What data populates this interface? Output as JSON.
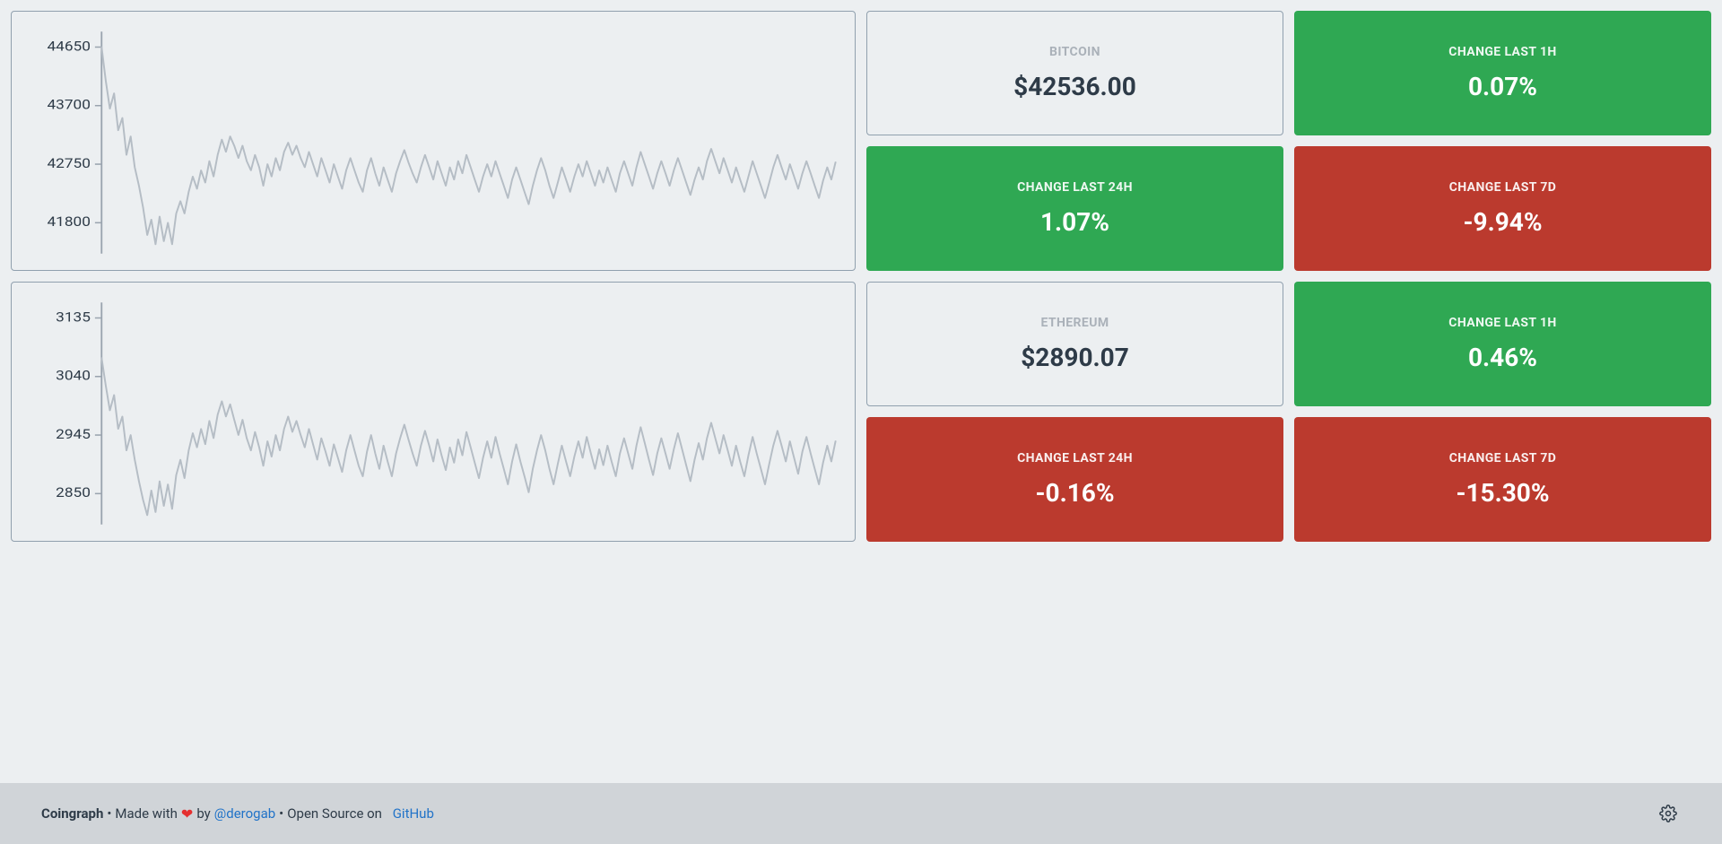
{
  "colors": {
    "page_bg": "#eceff1",
    "card_border": "#90a0ae",
    "positive_bg": "#2fa853",
    "negative_bg": "#bb3a2e",
    "chart_line": "#b5bdc5",
    "chart_axis": "#9aa4af",
    "text_primary": "#2e3b48",
    "text_muted": "#aab1b9",
    "footer_bg": "#d0d4d8",
    "link": "#2173c8",
    "heart": "#e53030"
  },
  "coins": [
    {
      "id": "bitcoin",
      "name_label": "BITCOIN",
      "price_display": "$42536.00",
      "change_1h": {
        "label": "CHANGE LAST 1H",
        "value": "0.07%",
        "positive": true
      },
      "change_24h": {
        "label": "CHANGE LAST 24H",
        "value": "1.07%",
        "positive": true
      },
      "change_7d": {
        "label": "CHANGE LAST 7D",
        "value": "-9.94%",
        "positive": false
      },
      "chart": {
        "type": "line",
        "y_ticks": [
          41800,
          42750,
          43700,
          44650
        ],
        "ylim": [
          41300,
          44900
        ],
        "line_color": "#b5bdc5",
        "line_width": 1.6,
        "axis_color": "#9aa4af",
        "background_color": "#eceff1",
        "label_fontsize": 14,
        "series": [
          44650,
          44100,
          43650,
          43900,
          43300,
          43500,
          42900,
          43200,
          42700,
          42400,
          42050,
          41600,
          41850,
          41450,
          41900,
          41500,
          41800,
          41450,
          41950,
          42150,
          41950,
          42300,
          42550,
          42350,
          42650,
          42450,
          42800,
          42550,
          42900,
          43150,
          42950,
          43200,
          43050,
          42850,
          43050,
          42800,
          42650,
          42900,
          42700,
          42400,
          42750,
          42550,
          42850,
          42650,
          42950,
          43100,
          42900,
          43050,
          42850,
          42700,
          42950,
          42750,
          42550,
          42850,
          42650,
          42450,
          42750,
          42550,
          42350,
          42650,
          42850,
          42650,
          42450,
          42300,
          42650,
          42850,
          42600,
          42400,
          42700,
          42500,
          42300,
          42600,
          42800,
          42980,
          42780,
          42600,
          42450,
          42700,
          42900,
          42700,
          42500,
          42800,
          42600,
          42400,
          42700,
          42500,
          42800,
          42600,
          42900,
          42700,
          42500,
          42300,
          42550,
          42750,
          42550,
          42800,
          42600,
          42400,
          42200,
          42500,
          42700,
          42500,
          42300,
          42100,
          42400,
          42650,
          42850,
          42650,
          42400,
          42200,
          42450,
          42700,
          42500,
          42300,
          42550,
          42750,
          42550,
          42800,
          42600,
          42400,
          42650,
          42450,
          42700,
          42500,
          42300,
          42600,
          42800,
          42600,
          42400,
          42700,
          42950,
          42750,
          42550,
          42350,
          42600,
          42800,
          42600,
          42400,
          42650,
          42850,
          42650,
          42450,
          42250,
          42500,
          42700,
          42500,
          42800,
          43000,
          42800,
          42600,
          42850,
          42650,
          42450,
          42700,
          42500,
          42300,
          42550,
          42800,
          42600,
          42400,
          42200,
          42450,
          42700,
          42900,
          42700,
          42500,
          42750,
          42550,
          42350,
          42600,
          42800,
          42600,
          42400,
          42200,
          42480,
          42700,
          42500,
          42780
        ]
      }
    },
    {
      "id": "ethereum",
      "name_label": "ETHEREUM",
      "price_display": "$2890.07",
      "change_1h": {
        "label": "CHANGE LAST 1H",
        "value": "0.46%",
        "positive": true
      },
      "change_24h": {
        "label": "CHANGE LAST 24H",
        "value": "-0.16%",
        "positive": false
      },
      "change_7d": {
        "label": "CHANGE LAST 7D",
        "value": "-15.30%",
        "positive": false
      },
      "chart": {
        "type": "line",
        "y_ticks": [
          2850,
          2945,
          3040,
          3135
        ],
        "ylim": [
          2800,
          3160
        ],
        "line_color": "#b5bdc5",
        "line_width": 1.6,
        "axis_color": "#9aa4af",
        "background_color": "#eceff1",
        "label_fontsize": 14,
        "series": [
          3070,
          3025,
          2985,
          3010,
          2955,
          2975,
          2920,
          2945,
          2905,
          2870,
          2840,
          2815,
          2855,
          2820,
          2870,
          2830,
          2865,
          2825,
          2880,
          2905,
          2875,
          2920,
          2948,
          2925,
          2955,
          2930,
          2968,
          2940,
          2978,
          3000,
          2975,
          2995,
          2970,
          2945,
          2970,
          2940,
          2920,
          2950,
          2925,
          2895,
          2935,
          2910,
          2945,
          2920,
          2955,
          2975,
          2950,
          2968,
          2945,
          2925,
          2955,
          2930,
          2905,
          2940,
          2918,
          2895,
          2930,
          2908,
          2885,
          2920,
          2945,
          2920,
          2895,
          2878,
          2918,
          2945,
          2915,
          2890,
          2928,
          2902,
          2878,
          2915,
          2940,
          2962,
          2938,
          2915,
          2895,
          2928,
          2952,
          2928,
          2902,
          2938,
          2912,
          2888,
          2925,
          2900,
          2938,
          2912,
          2950,
          2925,
          2900,
          2875,
          2908,
          2935,
          2908,
          2942,
          2915,
          2890,
          2865,
          2902,
          2930,
          2902,
          2878,
          2852,
          2890,
          2920,
          2945,
          2920,
          2890,
          2865,
          2898,
          2928,
          2902,
          2878,
          2910,
          2935,
          2908,
          2942,
          2915,
          2890,
          2922,
          2896,
          2928,
          2902,
          2878,
          2915,
          2940,
          2915,
          2890,
          2928,
          2958,
          2932,
          2905,
          2880,
          2915,
          2940,
          2915,
          2890,
          2922,
          2948,
          2922,
          2896,
          2870,
          2905,
          2932,
          2905,
          2940,
          2965,
          2940,
          2915,
          2945,
          2920,
          2895,
          2928,
          2902,
          2878,
          2912,
          2942,
          2915,
          2890,
          2865,
          2898,
          2928,
          2952,
          2928,
          2902,
          2935,
          2908,
          2882,
          2918,
          2942,
          2915,
          2890,
          2865,
          2900,
          2928,
          2902,
          2935
        ]
      }
    }
  ],
  "footer": {
    "brand": "Coingraph",
    "separator": " • ",
    "made_with": "Made with",
    "heart": "❤",
    "by": "by",
    "author_handle": "@derogab",
    "open_source_prefix": "Open Source on",
    "repo_link_text": "GitHub"
  }
}
